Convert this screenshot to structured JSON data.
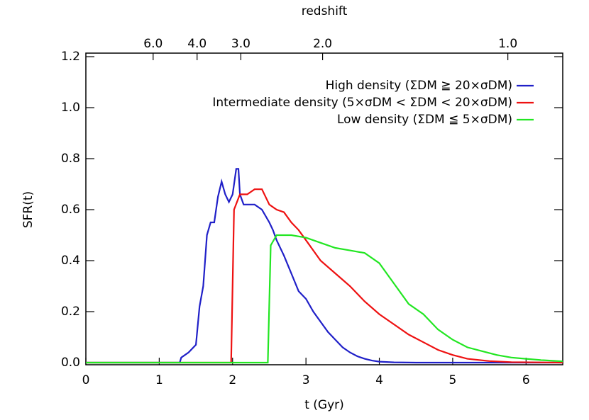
{
  "chart_data": {
    "type": "line",
    "xlabel": "t (Gyr)",
    "ylabel": "SFR(t)",
    "x2label": "redshift",
    "xlim": [
      0,
      6.5
    ],
    "ylim": [
      0,
      1.2
    ],
    "xticks": [
      0,
      1,
      2,
      3,
      4,
      5,
      6
    ],
    "yticks": [
      {
        "value": 0,
        "label": "0.0"
      },
      {
        "value": 0.2,
        "label": "0.2"
      },
      {
        "value": 0.4,
        "label": "0.4"
      },
      {
        "value": 0.6,
        "label": "0.6"
      },
      {
        "value": 0.8,
        "label": "0.8"
      },
      {
        "value": 1.0,
        "label": "1.0"
      },
      {
        "value": 1.2,
        "label": "1.2"
      }
    ],
    "x2ticks": [
      {
        "value": 6,
        "label": "6.0"
      },
      {
        "value": 4,
        "label": "4.0"
      },
      {
        "value": 3,
        "label": "3.0"
      },
      {
        "value": 2,
        "label": "2.0"
      },
      {
        "value": 1,
        "label": "1.0"
      }
    ],
    "legend": "upper right",
    "series": [
      {
        "name": "High density (ΣDM ≧ 20×σDM)",
        "color": "#2020c8",
        "x": [
          0,
          1.28,
          1.3,
          1.4,
          1.5,
          1.55,
          1.6,
          1.65,
          1.7,
          1.75,
          1.8,
          1.85,
          1.9,
          1.95,
          2.0,
          2.05,
          2.08,
          2.1,
          2.15,
          2.2,
          2.3,
          2.4,
          2.5,
          2.55,
          2.6,
          2.7,
          2.8,
          2.9,
          3.0,
          3.1,
          3.2,
          3.3,
          3.4,
          3.5,
          3.6,
          3.7,
          3.8,
          3.9,
          4.0,
          4.2,
          4.5,
          6.5
        ],
        "values": [
          0,
          0,
          0.02,
          0.04,
          0.07,
          0.22,
          0.3,
          0.5,
          0.55,
          0.55,
          0.65,
          0.71,
          0.66,
          0.63,
          0.66,
          0.76,
          0.76,
          0.66,
          0.62,
          0.62,
          0.62,
          0.6,
          0.55,
          0.52,
          0.48,
          0.42,
          0.35,
          0.28,
          0.25,
          0.2,
          0.16,
          0.12,
          0.09,
          0.06,
          0.04,
          0.025,
          0.015,
          0.008,
          0.004,
          0.001,
          0,
          0
        ]
      },
      {
        "name": "Intermediate density (5×σDM < ΣDM < 20×σDM)",
        "color": "#ee1111",
        "x": [
          0,
          1.98,
          2.02,
          2.1,
          2.2,
          2.3,
          2.4,
          2.5,
          2.6,
          2.7,
          2.8,
          2.9,
          3.0,
          3.1,
          3.2,
          3.4,
          3.6,
          3.8,
          4.0,
          4.2,
          4.4,
          4.6,
          4.8,
          5.0,
          5.2,
          5.5,
          5.8,
          6.5
        ],
        "values": [
          0,
          0,
          0.6,
          0.66,
          0.66,
          0.68,
          0.68,
          0.62,
          0.6,
          0.59,
          0.55,
          0.52,
          0.48,
          0.44,
          0.4,
          0.35,
          0.3,
          0.24,
          0.19,
          0.15,
          0.11,
          0.08,
          0.05,
          0.03,
          0.015,
          0.006,
          0.002,
          0
        ]
      },
      {
        "name": "Low density (ΣDM ≦ 5×σDM)",
        "color": "#22e622",
        "x": [
          0,
          2.48,
          2.52,
          2.6,
          2.8,
          3.0,
          3.2,
          3.4,
          3.6,
          3.8,
          4.0,
          4.2,
          4.4,
          4.6,
          4.8,
          5.0,
          5.2,
          5.4,
          5.6,
          5.8,
          6.0,
          6.2,
          6.5
        ],
        "values": [
          0,
          0,
          0.46,
          0.5,
          0.5,
          0.49,
          0.47,
          0.45,
          0.44,
          0.43,
          0.39,
          0.31,
          0.23,
          0.19,
          0.13,
          0.09,
          0.06,
          0.045,
          0.03,
          0.02,
          0.015,
          0.01,
          0.005
        ]
      }
    ]
  }
}
